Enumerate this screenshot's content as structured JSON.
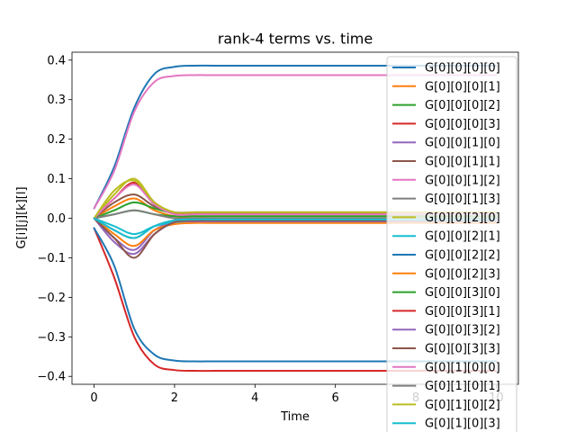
{
  "chart_data": {
    "type": "line",
    "title": "rank-4 terms vs. time",
    "xlabel": "Time",
    "ylabel": "G[i][j][k][l]",
    "xlim": [
      -0.55,
      10.55
    ],
    "ylim": [
      -0.42,
      0.42
    ],
    "x_ticks": [
      0,
      2,
      4,
      6,
      8,
      10
    ],
    "x_tick_labels": [
      "0",
      "2",
      "4",
      "6",
      "8",
      "10"
    ],
    "y_ticks": [
      -0.4,
      -0.3,
      -0.2,
      -0.1,
      0.0,
      0.1,
      0.2,
      0.3,
      0.4
    ],
    "y_tick_labels": [
      "−0.4",
      "−0.3",
      "−0.2",
      "−0.1",
      "0.0",
      "0.1",
      "0.2",
      "0.3",
      "0.4"
    ],
    "grid": false,
    "legend_position": "upper-right",
    "x": [
      0,
      0.5,
      1.0,
      1.5,
      2.0,
      2.5,
      3.0,
      4.0,
      6.0,
      8.0,
      10.0
    ],
    "series": [
      {
        "name": "G[0][0][0][0]",
        "color": "#1f77b4",
        "values": [
          0.025,
          0.13,
          0.28,
          0.365,
          0.383,
          0.386,
          0.386,
          0.386,
          0.386,
          0.386,
          0.386
        ]
      },
      {
        "name": "G[0][0][0][1]",
        "color": "#ff7f0e",
        "values": [
          0.0,
          0.03,
          0.05,
          0.02,
          0.005,
          0.0,
          0.0,
          0.0,
          0.0,
          0.0,
          0.0
        ]
      },
      {
        "name": "G[0][0][0][2]",
        "color": "#2ca02c",
        "values": [
          0.0,
          0.02,
          0.04,
          0.025,
          0.012,
          0.01,
          0.01,
          0.01,
          0.01,
          0.01,
          0.01
        ]
      },
      {
        "name": "G[0][0][0][3]",
        "color": "#d62728",
        "values": [
          -0.025,
          -0.15,
          -0.3,
          -0.37,
          -0.384,
          -0.386,
          -0.386,
          -0.386,
          -0.386,
          -0.386,
          -0.386
        ]
      },
      {
        "name": "G[0][0][1][0]",
        "color": "#9467bd",
        "values": [
          0.0,
          -0.05,
          -0.08,
          -0.03,
          -0.01,
          -0.005,
          -0.005,
          -0.005,
          -0.005,
          -0.005,
          -0.005
        ]
      },
      {
        "name": "G[0][0][1][1]",
        "color": "#8c564b",
        "values": [
          0.0,
          0.04,
          0.06,
          0.03,
          0.015,
          0.015,
          0.015,
          0.015,
          0.015,
          0.015,
          0.015
        ]
      },
      {
        "name": "G[0][0][1][2]",
        "color": "#e377c2",
        "values": [
          0.025,
          0.12,
          0.27,
          0.345,
          0.36,
          0.362,
          0.362,
          0.362,
          0.362,
          0.362,
          0.362
        ]
      },
      {
        "name": "G[0][0][1][3]",
        "color": "#7f7f7f",
        "values": [
          0.0,
          -0.03,
          -0.05,
          -0.02,
          -0.005,
          0.0,
          0.0,
          0.0,
          0.0,
          0.0,
          0.0
        ]
      },
      {
        "name": "G[0][0][2][0]",
        "color": "#bcbd22",
        "values": [
          0.0,
          0.06,
          0.1,
          0.04,
          0.01,
          0.005,
          0.005,
          0.005,
          0.005,
          0.005,
          0.005
        ]
      },
      {
        "name": "G[0][0][2][1]",
        "color": "#17becf",
        "values": [
          0.0,
          -0.02,
          -0.04,
          -0.02,
          -0.01,
          -0.01,
          -0.01,
          -0.01,
          -0.01,
          -0.01,
          -0.01
        ]
      },
      {
        "name": "G[0][0][2][2]",
        "color": "#1f77b4",
        "values": [
          -0.025,
          -0.12,
          -0.28,
          -0.345,
          -0.36,
          -0.362,
          -0.362,
          -0.362,
          -0.362,
          -0.362,
          -0.362
        ]
      },
      {
        "name": "G[0][0][2][3]",
        "color": "#ff7f0e",
        "values": [
          0.0,
          -0.04,
          -0.07,
          -0.03,
          -0.015,
          -0.012,
          -0.012,
          -0.012,
          -0.012,
          -0.012,
          -0.012
        ]
      },
      {
        "name": "G[0][0][3][0]",
        "color": "#2ca02c",
        "values": [
          0.0,
          0.01,
          0.02,
          0.01,
          0.005,
          0.005,
          0.005,
          0.005,
          0.005,
          0.005,
          0.005
        ]
      },
      {
        "name": "G[0][0][3][1]",
        "color": "#d62728",
        "values": [
          0.0,
          0.05,
          0.09,
          0.04,
          0.012,
          0.012,
          0.012,
          0.012,
          0.012,
          0.012,
          0.012
        ]
      },
      {
        "name": "G[0][0][3][2]",
        "color": "#9467bd",
        "values": [
          0.0,
          -0.06,
          -0.09,
          -0.04,
          -0.01,
          -0.008,
          -0.008,
          -0.008,
          -0.008,
          -0.008,
          -0.008
        ]
      },
      {
        "name": "G[0][0][3][3]",
        "color": "#8c564b",
        "values": [
          0.0,
          -0.05,
          -0.1,
          -0.04,
          -0.01,
          -0.006,
          -0.006,
          -0.006,
          -0.006,
          -0.006,
          -0.006
        ]
      },
      {
        "name": "G[0][1][0][0]",
        "color": "#e377c2",
        "values": [
          0.0,
          0.05,
          0.085,
          0.035,
          0.01,
          0.01,
          0.01,
          0.01,
          0.01,
          0.01,
          0.01
        ]
      },
      {
        "name": "G[0][1][0][1]",
        "color": "#7f7f7f",
        "values": [
          0.0,
          0.01,
          0.02,
          0.01,
          0.0,
          0.0,
          0.0,
          0.0,
          0.0,
          0.0,
          0.0
        ]
      },
      {
        "name": "G[0][1][0][2]",
        "color": "#bcbd22",
        "values": [
          0.0,
          0.07,
          0.095,
          0.04,
          0.015,
          0.015,
          0.015,
          0.015,
          0.015,
          0.015,
          0.015
        ]
      },
      {
        "name": "G[0][1][0][3]",
        "color": "#17becf",
        "values": [
          0.0,
          -0.03,
          -0.05,
          -0.02,
          -0.005,
          -0.003,
          -0.003,
          -0.003,
          -0.003,
          -0.003,
          -0.003
        ]
      }
    ]
  }
}
